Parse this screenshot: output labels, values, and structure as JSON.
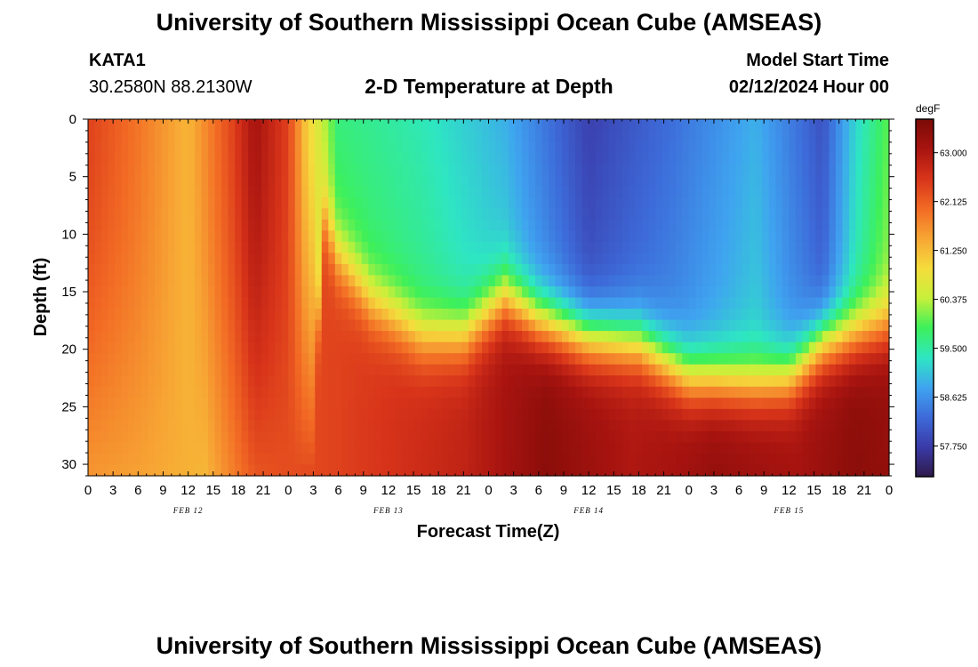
{
  "header": {
    "title": "University of Southern Mississippi Ocean Cube (AMSEAS)",
    "station": "KATA1",
    "coords": "30.2580N  88.2130W",
    "chart_title": "2-D Temperature at Depth",
    "model_start_label": "Model Start Time",
    "model_start_value": "02/12/2024 Hour 00"
  },
  "footer": {
    "title": "University of Southern Mississippi Ocean Cube (AMSEAS)"
  },
  "colors": {
    "colormap": [
      "#2e1a4a",
      "#3a3aa8",
      "#3d6bd9",
      "#3fa4f0",
      "#2ee6c2",
      "#3df05a",
      "#c8f03a",
      "#f5dc3c",
      "#f7a534",
      "#f26a24",
      "#d8341a",
      "#a81410",
      "#7a0a06"
    ]
  },
  "chart_data": {
    "type": "heatmap",
    "title": "2-D Temperature at Depth",
    "xlabel": "Forecast Time(Z)",
    "ylabel": "Depth (ft)",
    "x_hours": [
      0,
      96
    ],
    "x_tick_labels": [
      "0",
      "3",
      "6",
      "9",
      "12",
      "15",
      "18",
      "21",
      "0",
      "3",
      "6",
      "9",
      "12",
      "15",
      "18",
      "21",
      "0",
      "3",
      "6",
      "9",
      "12",
      "15",
      "18",
      "21",
      "0",
      "3",
      "6",
      "9",
      "12",
      "15",
      "18",
      "21",
      "0"
    ],
    "date_labels": [
      {
        "hour": 12,
        "label": "FEB 12"
      },
      {
        "hour": 36,
        "label": "FEB 13"
      },
      {
        "hour": 60,
        "label": "FEB 14"
      },
      {
        "hour": 84,
        "label": "FEB 15"
      }
    ],
    "ylim": [
      0,
      31
    ],
    "y_ticks": [
      0,
      5,
      10,
      15,
      20,
      25,
      30
    ],
    "colorbar": {
      "unit": "degF",
      "range": [
        57.2,
        63.6
      ],
      "ticks": [
        57.75,
        58.625,
        59.5,
        60.375,
        61.25,
        62.125,
        63.0
      ],
      "tick_labels": [
        "57.750",
        "58.625",
        "59.500",
        "60.375",
        "61.250",
        "62.125",
        "63.000"
      ]
    },
    "thermocline_depth_ft_by_hour": [
      {
        "hour": 0,
        "depth": 31
      },
      {
        "hour": 27,
        "depth": 31
      },
      {
        "hour": 28,
        "depth": 8
      },
      {
        "hour": 30,
        "depth": 12
      },
      {
        "hour": 34,
        "depth": 16
      },
      {
        "hour": 40,
        "depth": 19
      },
      {
        "hour": 45,
        "depth": 19
      },
      {
        "hour": 50,
        "depth": 15.5
      },
      {
        "hour": 54,
        "depth": 17.5
      },
      {
        "hour": 60,
        "depth": 19
      },
      {
        "hour": 66,
        "depth": 19.5
      },
      {
        "hour": 72,
        "depth": 22.5
      },
      {
        "hour": 80,
        "depth": 23
      },
      {
        "hour": 84,
        "depth": 22.5
      },
      {
        "hour": 88,
        "depth": 19.5
      },
      {
        "hour": 96,
        "depth": 18
      }
    ],
    "surface_temp_degF_by_hour": [
      {
        "hour": 0,
        "value": 62.4
      },
      {
        "hour": 6,
        "value": 61.9
      },
      {
        "hour": 12,
        "value": 61.3
      },
      {
        "hour": 17,
        "value": 62.3
      },
      {
        "hour": 20,
        "value": 63.1
      },
      {
        "hour": 24,
        "value": 62.4
      },
      {
        "hour": 26,
        "value": 61.2
      },
      {
        "hour": 30,
        "value": 59.7
      },
      {
        "hour": 40,
        "value": 59.4
      },
      {
        "hour": 50,
        "value": 58.9
      },
      {
        "hour": 60,
        "value": 57.8
      },
      {
        "hour": 70,
        "value": 58.3
      },
      {
        "hour": 75,
        "value": 58.6
      },
      {
        "hour": 80,
        "value": 58.9
      },
      {
        "hour": 88,
        "value": 58.0
      },
      {
        "hour": 92,
        "value": 59.2
      },
      {
        "hour": 96,
        "value": 60.0
      }
    ],
    "deep_temp_degF_by_hour": [
      {
        "hour": 0,
        "value": 61.6
      },
      {
        "hour": 6,
        "value": 61.5
      },
      {
        "hour": 14,
        "value": 61.3
      },
      {
        "hour": 20,
        "value": 62.2
      },
      {
        "hour": 30,
        "value": 62.4
      },
      {
        "hour": 45,
        "value": 62.8
      },
      {
        "hour": 55,
        "value": 63.4
      },
      {
        "hour": 65,
        "value": 63.0
      },
      {
        "hour": 70,
        "value": 63.1
      },
      {
        "hour": 75,
        "value": 63.3
      },
      {
        "hour": 85,
        "value": 63.1
      },
      {
        "hour": 92,
        "value": 63.4
      },
      {
        "hour": 96,
        "value": 63.3
      }
    ]
  }
}
